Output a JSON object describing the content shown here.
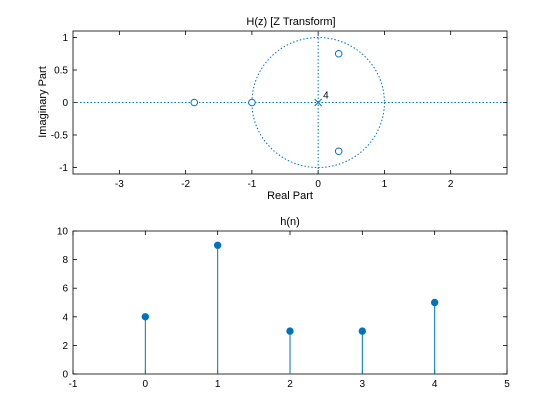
{
  "colors": {
    "series": "#0072bd",
    "axis": "#000000",
    "background": "#ffffff"
  },
  "chart_data": [
    {
      "type": "scatter",
      "title": "H(z)   [Z Transform]",
      "xlabel": "Real Part",
      "ylabel": "Imaginary Part",
      "xlim": [
        -3.7,
        2.85
      ],
      "ylim": [
        -1.1,
        1.1
      ],
      "xticks": [
        -3,
        -2,
        -1,
        0,
        1,
        2
      ],
      "yticks": [
        -1,
        -0.5,
        0,
        0.5,
        1
      ],
      "xtick_labels": [
        "-3",
        "-2",
        "-1",
        "0",
        "1",
        "2"
      ],
      "ytick_labels": [
        "-1",
        "-0.5",
        "0",
        "0.5",
        "1"
      ],
      "grid": false,
      "unit_circle": true,
      "zeros": [
        {
          "x": -1.87,
          "y": 0
        },
        {
          "x": -1.0,
          "y": 0
        },
        {
          "x": 0.31,
          "y": 0.75
        },
        {
          "x": 0.31,
          "y": -0.75
        }
      ],
      "poles": [
        {
          "x": 0,
          "y": 0,
          "multiplicity_label": "4"
        }
      ]
    },
    {
      "type": "stem",
      "title": "h(n)",
      "xlim": [
        -1,
        5
      ],
      "ylim": [
        0,
        10
      ],
      "xticks": [
        -1,
        0,
        1,
        2,
        3,
        4,
        5
      ],
      "yticks": [
        0,
        2,
        4,
        6,
        8,
        10
      ],
      "xtick_labels": [
        "-1",
        "0",
        "1",
        "2",
        "3",
        "4",
        "5"
      ],
      "ytick_labels": [
        "0",
        "2",
        "4",
        "6",
        "8",
        "10"
      ],
      "grid": false,
      "x": [
        0,
        1,
        2,
        3,
        4
      ],
      "values": [
        4,
        9,
        3,
        3,
        5
      ]
    }
  ]
}
